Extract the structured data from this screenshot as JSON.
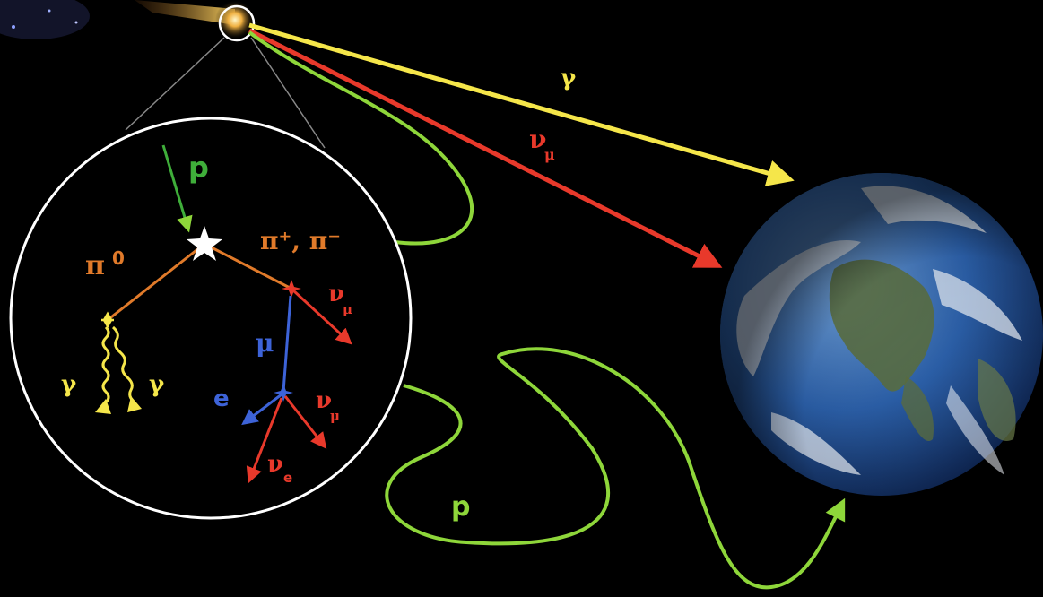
{
  "colors": {
    "background": "#000000",
    "gamma": "#f5e64a",
    "neutrino": "#e8392b",
    "proton": "#8ed63a",
    "pion": "#e07a2a",
    "muon": "#3d63d8",
    "electron": "#3d63d8",
    "lens": "#ffffff",
    "earth_ocean": "#2b5fa8"
  },
  "source": {
    "name": "cosmic-ray-source"
  },
  "outside_labels": {
    "gamma": "γ",
    "nu_mu_symbol": "ν",
    "nu_mu_sub": "μ",
    "proton": "p"
  },
  "inset_labels": {
    "proton": "p",
    "pi0_symbol": "π",
    "pi0_sup": "0",
    "pi_charged": "π⁺, π⁻",
    "gamma_left": "γ",
    "gamma_right": "γ",
    "muon": "μ",
    "electron": "e",
    "nu_mu_upper_symbol": "ν",
    "nu_mu_upper_sub": "μ",
    "nu_mu_lower_symbol": "ν",
    "nu_mu_lower_sub": "μ",
    "nu_e_symbol": "ν",
    "nu_e_sub": "e"
  },
  "earth": {
    "icon": "earth-globe-icon"
  }
}
